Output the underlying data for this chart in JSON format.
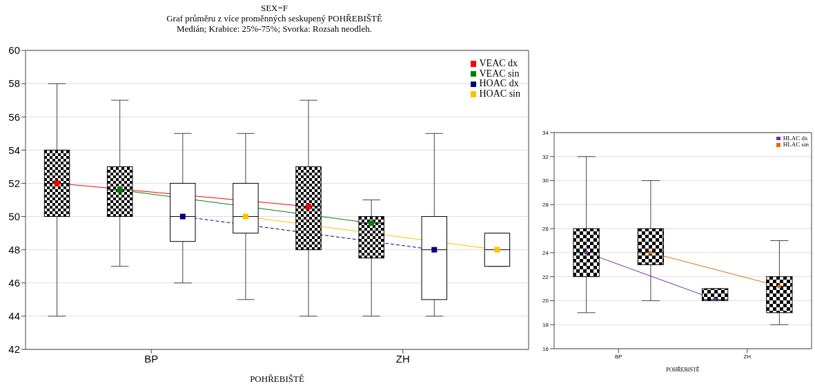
{
  "chart_data": [
    {
      "type": "box",
      "title": "SEX=F",
      "subtitle": "Graf průměru z více proměnných seskupený POHŘEBIŠTĚ",
      "annotations": [
        "Medián; Krabice: 25%-75%; Svorka: Rozsah neodleh."
      ],
      "xlabel": "POHŘEBIŠTĚ",
      "categories": [
        "BP",
        "ZH"
      ],
      "ylim": [
        42,
        60
      ],
      "yticks": [
        42,
        44,
        46,
        48,
        50,
        52,
        54,
        56,
        58,
        60
      ],
      "grid": "y",
      "legend": "top right",
      "marker": "square",
      "line_style": "solid",
      "series": [
        {
          "color": "#000000",
          "boxes": [
            {
              "low": 44,
              "q1": 50,
              "median": 52,
              "q3": 54,
              "high": 58
            },
            {
              "low": 44,
              "q1": 48,
              "median": 50.6,
              "q3": 53,
              "high": 57
            }
          ]
        },
        {
          "color": "#000000",
          "boxes": [
            {
              "low": 47,
              "q1": 50,
              "median": 51.6,
              "q3": 53,
              "high": 57
            },
            {
              "low": 44,
              "q1": 47.5,
              "median": 49.6,
              "q3": 50,
              "high": 51
            }
          ]
        },
        {
          "color": "#ffffff",
          "boxes": [
            {
              "low": 46,
              "q1": 48.5,
              "median": 50,
              "q3": 52,
              "high": 55
            },
            {
              "low": 44,
              "q1": 45,
              "median": 48,
              "q3": 50,
              "high": 55
            }
          ]
        },
        {
          "color": "#ffffff",
          "boxes": [
            {
              "low": 45,
              "q1": 49,
              "median": 50,
              "q3": 52,
              "high": 55
            },
            {
              "low": 47,
              "q1": 47,
              "median": 48,
              "q3": 49,
              "high": 49
            }
          ]
        },
        {
          "type": "line",
          "name": "VEAC dx",
          "color": "#ff0000",
          "values": [
            52,
            50.6
          ]
        },
        {
          "type": "line",
          "name": "VEAC sin",
          "color": "#008000",
          "values": [
            51.6,
            49.6
          ]
        },
        {
          "type": "line",
          "name": "HOAC dx",
          "color": "#000080",
          "line_style": "dashed",
          "values": [
            50,
            48
          ]
        },
        {
          "type": "line",
          "name": "HOAC sin",
          "color": "#ffc000",
          "values": [
            50,
            48
          ]
        }
      ]
    },
    {
      "type": "box",
      "xlabel": "POHŘEBIŠTĚ",
      "categories": [
        "BP",
        "ZH"
      ],
      "ylim": [
        16,
        34
      ],
      "yticks": [
        16,
        18,
        20,
        22,
        24,
        26,
        28,
        30,
        32,
        34
      ],
      "grid": "y",
      "legend": "top right",
      "marker": "square",
      "line_style": "solid",
      "series": [
        {
          "color": "#000000",
          "boxes": [
            {
              "low": 19,
              "q1": 22,
              "median": 24,
              "q3": 26,
              "high": 32
            },
            {
              "low": 20,
              "q1": 20,
              "median": 20.1,
              "q3": 21,
              "high": 21
            }
          ]
        },
        {
          "color": "#000000",
          "boxes": [
            {
              "low": 20,
              "q1": 23,
              "median": 24,
              "q3": 26,
              "high": 30
            },
            {
              "low": 18,
              "q1": 19,
              "median": 21.2,
              "q3": 22,
              "high": 25
            }
          ]
        },
        {
          "type": "line",
          "name": "HLAC dx",
          "color": "#7030a0",
          "values": [
            24,
            20.1
          ]
        },
        {
          "type": "line",
          "name": "HLAC sin",
          "color": "#e46c0a",
          "values": [
            24,
            21.2
          ]
        }
      ]
    }
  ]
}
